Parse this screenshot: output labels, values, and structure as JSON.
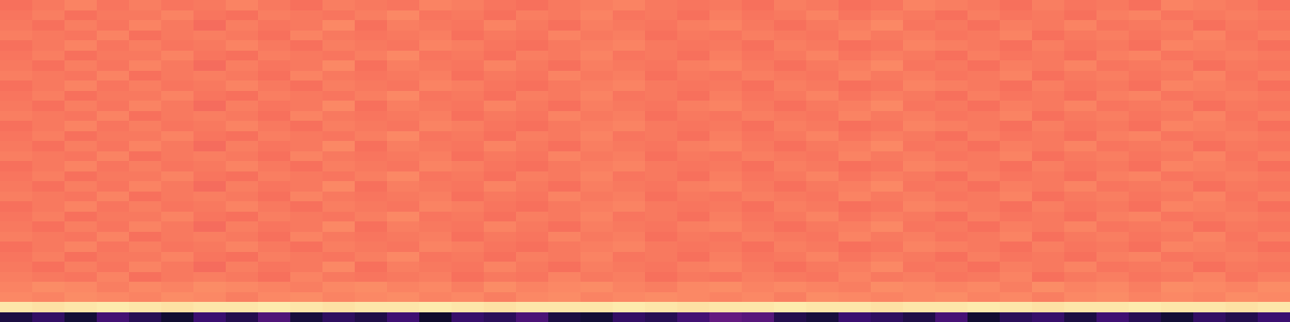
{
  "chart_data": {
    "type": "heatmap",
    "tick_labels": false,
    "zlim": [
      0,
      1
    ],
    "z": [
      [
        0.12,
        0.18,
        0.1,
        0.22,
        0.15,
        0.09,
        0.2,
        0.14,
        0.25,
        0.11,
        0.17,
        0.13,
        0.21,
        0.08,
        0.19,
        0.16,
        0.24,
        0.12,
        0.1,
        0.18,
        0.15,
        0.22,
        0.3,
        0.27,
        0.14,
        0.11,
        0.2,
        0.17,
        0.13,
        0.23,
        0.09,
        0.16,
        0.19,
        0.12,
        0.21,
        0.15,
        0.1,
        0.18,
        0.14,
        0.2
      ],
      [
        0.95,
        0.94,
        0.95,
        0.96,
        0.95,
        0.94,
        0.95,
        0.95,
        0.96,
        0.95,
        0.94,
        0.95,
        0.95,
        0.96,
        0.95,
        0.94,
        0.95,
        0.95,
        0.95,
        0.96,
        0.95,
        0.94,
        0.95,
        0.95,
        0.96,
        0.95,
        0.95,
        0.94,
        0.95,
        0.95,
        0.96,
        0.95,
        0.94,
        0.95,
        0.95,
        0.96,
        0.95,
        0.95,
        0.94,
        0.95
      ],
      [
        0.75,
        0.74,
        0.76,
        0.75,
        0.74,
        0.76,
        0.75,
        0.73,
        0.75,
        0.76,
        0.74,
        0.75,
        0.76,
        0.74,
        0.75,
        0.73,
        0.75,
        0.76,
        0.74,
        0.75,
        0.76,
        0.75,
        0.74,
        0.75,
        0.73,
        0.76,
        0.75,
        0.74,
        0.75,
        0.76,
        0.74,
        0.75,
        0.73,
        0.75,
        0.76,
        0.74,
        0.75,
        0.74,
        0.76,
        0.75
      ],
      [
        0.74,
        0.76,
        0.75,
        0.73,
        0.75,
        0.74,
        0.76,
        0.75,
        0.74,
        0.73,
        0.75,
        0.76,
        0.74,
        0.75,
        0.73,
        0.76,
        0.74,
        0.75,
        0.76,
        0.74,
        0.73,
        0.75,
        0.76,
        0.74,
        0.75,
        0.74,
        0.73,
        0.76,
        0.75,
        0.74,
        0.75,
        0.73,
        0.76,
        0.74,
        0.75,
        0.73,
        0.76,
        0.75,
        0.74,
        0.76
      ],
      [
        0.73,
        0.72,
        0.71,
        0.74,
        0.7,
        0.72,
        0.73,
        0.72,
        0.7,
        0.74,
        0.72,
        0.71,
        0.72,
        0.73,
        0.7,
        0.72,
        0.71,
        0.74,
        0.72,
        0.73,
        0.7,
        0.72,
        0.71,
        0.73,
        0.72,
        0.71,
        0.74,
        0.72,
        0.73,
        0.71,
        0.72,
        0.74,
        0.7,
        0.72,
        0.73,
        0.71,
        0.72,
        0.74,
        0.71,
        0.73
      ],
      [
        0.72,
        0.7,
        0.73,
        0.71,
        0.74,
        0.72,
        0.69,
        0.73,
        0.71,
        0.72,
        0.75,
        0.7,
        0.73,
        0.72,
        0.71,
        0.74,
        0.72,
        0.7,
        0.73,
        0.72,
        0.71,
        0.73,
        0.74,
        0.72,
        0.7,
        0.72,
        0.73,
        0.75,
        0.71,
        0.72,
        0.7,
        0.73,
        0.72,
        0.74,
        0.71,
        0.72,
        0.73,
        0.7,
        0.72,
        0.71
      ],
      [
        0.71,
        0.73,
        0.7,
        0.72,
        0.72,
        0.74,
        0.71,
        0.7,
        0.73,
        0.72,
        0.71,
        0.73,
        0.75,
        0.71,
        0.72,
        0.7,
        0.73,
        0.72,
        0.74,
        0.71,
        0.72,
        0.7,
        0.73,
        0.71,
        0.72,
        0.74,
        0.71,
        0.73,
        0.72,
        0.7,
        0.73,
        0.71,
        0.72,
        0.7,
        0.73,
        0.74,
        0.71,
        0.72,
        0.73,
        0.72
      ],
      [
        0.7,
        0.72,
        0.74,
        0.71,
        0.73,
        0.71,
        0.72,
        0.74,
        0.72,
        0.7,
        0.73,
        0.72,
        0.71,
        0.74,
        0.73,
        0.71,
        0.7,
        0.72,
        0.73,
        0.74,
        0.72,
        0.71,
        0.72,
        0.7,
        0.73,
        0.72,
        0.7,
        0.71,
        0.74,
        0.73,
        0.72,
        0.7,
        0.73,
        0.71,
        0.72,
        0.7,
        0.74,
        0.73,
        0.72,
        0.7
      ],
      [
        0.73,
        0.72,
        0.71,
        0.74,
        0.7,
        0.72,
        0.73,
        0.72,
        0.7,
        0.74,
        0.72,
        0.71,
        0.72,
        0.73,
        0.7,
        0.72,
        0.71,
        0.74,
        0.72,
        0.73,
        0.7,
        0.72,
        0.71,
        0.73,
        0.72,
        0.71,
        0.74,
        0.72,
        0.73,
        0.71,
        0.72,
        0.74,
        0.7,
        0.72,
        0.73,
        0.71,
        0.72,
        0.74,
        0.71,
        0.73
      ],
      [
        0.72,
        0.7,
        0.73,
        0.71,
        0.74,
        0.72,
        0.69,
        0.73,
        0.71,
        0.72,
        0.75,
        0.7,
        0.73,
        0.72,
        0.71,
        0.74,
        0.72,
        0.7,
        0.73,
        0.72,
        0.71,
        0.73,
        0.74,
        0.72,
        0.7,
        0.72,
        0.73,
        0.75,
        0.71,
        0.72,
        0.7,
        0.73,
        0.72,
        0.74,
        0.71,
        0.72,
        0.73,
        0.7,
        0.72,
        0.71
      ],
      [
        0.71,
        0.73,
        0.7,
        0.72,
        0.72,
        0.74,
        0.71,
        0.7,
        0.73,
        0.72,
        0.71,
        0.73,
        0.75,
        0.71,
        0.72,
        0.7,
        0.73,
        0.72,
        0.74,
        0.71,
        0.72,
        0.7,
        0.73,
        0.71,
        0.72,
        0.74,
        0.71,
        0.73,
        0.72,
        0.7,
        0.73,
        0.71,
        0.72,
        0.7,
        0.73,
        0.74,
        0.71,
        0.72,
        0.73,
        0.72
      ],
      [
        0.7,
        0.72,
        0.74,
        0.71,
        0.73,
        0.71,
        0.72,
        0.74,
        0.72,
        0.7,
        0.73,
        0.72,
        0.71,
        0.74,
        0.73,
        0.71,
        0.7,
        0.72,
        0.73,
        0.74,
        0.72,
        0.71,
        0.72,
        0.7,
        0.73,
        0.72,
        0.7,
        0.71,
        0.74,
        0.73,
        0.72,
        0.7,
        0.73,
        0.71,
        0.72,
        0.7,
        0.74,
        0.73,
        0.72,
        0.7
      ],
      [
        0.73,
        0.72,
        0.71,
        0.74,
        0.7,
        0.72,
        0.73,
        0.72,
        0.7,
        0.74,
        0.72,
        0.71,
        0.72,
        0.73,
        0.7,
        0.72,
        0.71,
        0.74,
        0.72,
        0.73,
        0.7,
        0.72,
        0.71,
        0.73,
        0.72,
        0.71,
        0.74,
        0.72,
        0.73,
        0.71,
        0.72,
        0.74,
        0.7,
        0.72,
        0.73,
        0.71,
        0.72,
        0.74,
        0.71,
        0.73
      ],
      [
        0.72,
        0.7,
        0.73,
        0.71,
        0.74,
        0.72,
        0.69,
        0.73,
        0.71,
        0.72,
        0.75,
        0.7,
        0.73,
        0.72,
        0.71,
        0.74,
        0.72,
        0.7,
        0.73,
        0.72,
        0.71,
        0.73,
        0.74,
        0.72,
        0.7,
        0.72,
        0.73,
        0.75,
        0.71,
        0.72,
        0.7,
        0.73,
        0.72,
        0.74,
        0.71,
        0.72,
        0.73,
        0.7,
        0.72,
        0.71
      ],
      [
        0.71,
        0.73,
        0.7,
        0.72,
        0.72,
        0.74,
        0.71,
        0.7,
        0.73,
        0.72,
        0.71,
        0.73,
        0.75,
        0.71,
        0.72,
        0.7,
        0.73,
        0.72,
        0.74,
        0.71,
        0.72,
        0.7,
        0.73,
        0.71,
        0.72,
        0.74,
        0.71,
        0.73,
        0.72,
        0.7,
        0.73,
        0.71,
        0.72,
        0.7,
        0.73,
        0.74,
        0.71,
        0.72,
        0.73,
        0.72
      ],
      [
        0.7,
        0.72,
        0.74,
        0.71,
        0.73,
        0.71,
        0.72,
        0.74,
        0.72,
        0.7,
        0.73,
        0.72,
        0.71,
        0.74,
        0.73,
        0.71,
        0.7,
        0.72,
        0.73,
        0.74,
        0.72,
        0.71,
        0.72,
        0.7,
        0.73,
        0.72,
        0.7,
        0.71,
        0.74,
        0.73,
        0.72,
        0.7,
        0.73,
        0.71,
        0.72,
        0.7,
        0.74,
        0.73,
        0.72,
        0.7
      ],
      [
        0.73,
        0.72,
        0.71,
        0.74,
        0.7,
        0.72,
        0.73,
        0.72,
        0.7,
        0.74,
        0.72,
        0.71,
        0.72,
        0.73,
        0.7,
        0.72,
        0.71,
        0.74,
        0.72,
        0.73,
        0.7,
        0.72,
        0.71,
        0.73,
        0.72,
        0.71,
        0.74,
        0.72,
        0.73,
        0.71,
        0.72,
        0.74,
        0.7,
        0.72,
        0.73,
        0.71,
        0.72,
        0.74,
        0.71,
        0.73
      ],
      [
        0.72,
        0.7,
        0.73,
        0.71,
        0.74,
        0.72,
        0.69,
        0.73,
        0.71,
        0.72,
        0.75,
        0.7,
        0.73,
        0.72,
        0.71,
        0.74,
        0.72,
        0.7,
        0.73,
        0.72,
        0.71,
        0.73,
        0.74,
        0.72,
        0.7,
        0.72,
        0.73,
        0.75,
        0.71,
        0.72,
        0.7,
        0.73,
        0.72,
        0.74,
        0.71,
        0.72,
        0.73,
        0.7,
        0.72,
        0.71
      ],
      [
        0.71,
        0.73,
        0.7,
        0.72,
        0.72,
        0.74,
        0.71,
        0.7,
        0.73,
        0.72,
        0.71,
        0.73,
        0.75,
        0.71,
        0.72,
        0.7,
        0.73,
        0.72,
        0.74,
        0.71,
        0.72,
        0.7,
        0.73,
        0.71,
        0.72,
        0.74,
        0.71,
        0.73,
        0.72,
        0.7,
        0.73,
        0.71,
        0.72,
        0.7,
        0.73,
        0.74,
        0.71,
        0.72,
        0.73,
        0.72
      ],
      [
        0.7,
        0.72,
        0.74,
        0.71,
        0.73,
        0.71,
        0.72,
        0.74,
        0.72,
        0.7,
        0.73,
        0.72,
        0.71,
        0.74,
        0.73,
        0.71,
        0.7,
        0.72,
        0.73,
        0.74,
        0.72,
        0.71,
        0.72,
        0.7,
        0.73,
        0.72,
        0.7,
        0.71,
        0.74,
        0.73,
        0.72,
        0.7,
        0.73,
        0.71,
        0.72,
        0.7,
        0.74,
        0.73,
        0.72,
        0.7
      ],
      [
        0.73,
        0.72,
        0.71,
        0.74,
        0.7,
        0.72,
        0.73,
        0.72,
        0.7,
        0.74,
        0.72,
        0.71,
        0.72,
        0.73,
        0.7,
        0.72,
        0.71,
        0.74,
        0.72,
        0.73,
        0.7,
        0.72,
        0.71,
        0.73,
        0.72,
        0.71,
        0.74,
        0.72,
        0.73,
        0.71,
        0.72,
        0.74,
        0.7,
        0.72,
        0.73,
        0.71,
        0.72,
        0.74,
        0.71,
        0.73
      ],
      [
        0.72,
        0.7,
        0.73,
        0.71,
        0.74,
        0.72,
        0.69,
        0.73,
        0.71,
        0.72,
        0.75,
        0.7,
        0.73,
        0.72,
        0.71,
        0.74,
        0.72,
        0.7,
        0.73,
        0.72,
        0.71,
        0.73,
        0.74,
        0.72,
        0.7,
        0.72,
        0.73,
        0.75,
        0.71,
        0.72,
        0.7,
        0.73,
        0.72,
        0.74,
        0.71,
        0.72,
        0.73,
        0.7,
        0.72,
        0.71
      ],
      [
        0.71,
        0.73,
        0.7,
        0.72,
        0.72,
        0.74,
        0.71,
        0.7,
        0.73,
        0.72,
        0.71,
        0.73,
        0.75,
        0.71,
        0.72,
        0.7,
        0.73,
        0.72,
        0.74,
        0.71,
        0.72,
        0.7,
        0.73,
        0.71,
        0.72,
        0.74,
        0.71,
        0.73,
        0.72,
        0.7,
        0.73,
        0.71,
        0.72,
        0.7,
        0.73,
        0.74,
        0.71,
        0.72,
        0.73,
        0.72
      ],
      [
        0.7,
        0.72,
        0.74,
        0.71,
        0.73,
        0.71,
        0.72,
        0.74,
        0.72,
        0.7,
        0.73,
        0.72,
        0.71,
        0.74,
        0.73,
        0.71,
        0.7,
        0.72,
        0.73,
        0.74,
        0.72,
        0.71,
        0.72,
        0.7,
        0.73,
        0.72,
        0.7,
        0.71,
        0.74,
        0.73,
        0.72,
        0.7,
        0.73,
        0.71,
        0.72,
        0.7,
        0.74,
        0.73,
        0.72,
        0.7
      ],
      [
        0.73,
        0.72,
        0.71,
        0.74,
        0.7,
        0.72,
        0.73,
        0.72,
        0.7,
        0.74,
        0.72,
        0.71,
        0.72,
        0.73,
        0.7,
        0.72,
        0.71,
        0.74,
        0.72,
        0.73,
        0.7,
        0.72,
        0.71,
        0.73,
        0.72,
        0.71,
        0.74,
        0.72,
        0.73,
        0.71,
        0.72,
        0.74,
        0.7,
        0.72,
        0.73,
        0.71,
        0.72,
        0.74,
        0.71,
        0.73
      ],
      [
        0.72,
        0.7,
        0.73,
        0.71,
        0.74,
        0.72,
        0.69,
        0.73,
        0.71,
        0.72,
        0.75,
        0.7,
        0.73,
        0.72,
        0.71,
        0.74,
        0.72,
        0.7,
        0.73,
        0.72,
        0.71,
        0.73,
        0.74,
        0.72,
        0.7,
        0.72,
        0.73,
        0.75,
        0.71,
        0.72,
        0.7,
        0.73,
        0.72,
        0.74,
        0.71,
        0.72,
        0.73,
        0.7,
        0.72,
        0.71
      ],
      [
        0.71,
        0.73,
        0.7,
        0.72,
        0.72,
        0.74,
        0.71,
        0.7,
        0.73,
        0.72,
        0.71,
        0.73,
        0.75,
        0.71,
        0.72,
        0.7,
        0.73,
        0.72,
        0.74,
        0.71,
        0.72,
        0.7,
        0.73,
        0.71,
        0.72,
        0.74,
        0.71,
        0.73,
        0.72,
        0.7,
        0.73,
        0.71,
        0.72,
        0.7,
        0.73,
        0.74,
        0.71,
        0.72,
        0.73,
        0.72
      ],
      [
        0.7,
        0.72,
        0.74,
        0.71,
        0.73,
        0.71,
        0.72,
        0.74,
        0.72,
        0.7,
        0.73,
        0.72,
        0.71,
        0.74,
        0.73,
        0.71,
        0.7,
        0.72,
        0.73,
        0.74,
        0.72,
        0.71,
        0.72,
        0.7,
        0.73,
        0.72,
        0.7,
        0.71,
        0.74,
        0.73,
        0.72,
        0.7,
        0.73,
        0.71,
        0.72,
        0.7,
        0.74,
        0.73,
        0.72,
        0.7
      ],
      [
        0.73,
        0.72,
        0.71,
        0.74,
        0.7,
        0.72,
        0.73,
        0.72,
        0.7,
        0.74,
        0.72,
        0.71,
        0.72,
        0.73,
        0.7,
        0.72,
        0.71,
        0.74,
        0.72,
        0.73,
        0.7,
        0.72,
        0.71,
        0.73,
        0.72,
        0.71,
        0.74,
        0.72,
        0.73,
        0.71,
        0.72,
        0.74,
        0.7,
        0.72,
        0.73,
        0.71,
        0.72,
        0.74,
        0.71,
        0.73
      ],
      [
        0.72,
        0.7,
        0.73,
        0.71,
        0.74,
        0.72,
        0.69,
        0.73,
        0.71,
        0.72,
        0.75,
        0.7,
        0.73,
        0.72,
        0.71,
        0.74,
        0.72,
        0.7,
        0.73,
        0.72,
        0.71,
        0.73,
        0.74,
        0.72,
        0.7,
        0.72,
        0.73,
        0.75,
        0.71,
        0.72,
        0.7,
        0.73,
        0.72,
        0.74,
        0.71,
        0.72,
        0.73,
        0.7,
        0.72,
        0.71
      ],
      [
        0.71,
        0.73,
        0.7,
        0.72,
        0.72,
        0.74,
        0.71,
        0.7,
        0.73,
        0.72,
        0.71,
        0.73,
        0.75,
        0.71,
        0.72,
        0.7,
        0.73,
        0.72,
        0.74,
        0.71,
        0.72,
        0.7,
        0.73,
        0.71,
        0.72,
        0.74,
        0.71,
        0.73,
        0.72,
        0.7,
        0.73,
        0.71,
        0.72,
        0.7,
        0.73,
        0.74,
        0.71,
        0.72,
        0.73,
        0.72
      ],
      [
        0.7,
        0.72,
        0.74,
        0.71,
        0.73,
        0.71,
        0.72,
        0.74,
        0.72,
        0.7,
        0.73,
        0.72,
        0.71,
        0.74,
        0.73,
        0.71,
        0.7,
        0.72,
        0.73,
        0.74,
        0.72,
        0.71,
        0.72,
        0.7,
        0.73,
        0.72,
        0.7,
        0.71,
        0.74,
        0.73,
        0.72,
        0.7,
        0.73,
        0.71,
        0.72,
        0.7,
        0.74,
        0.73,
        0.72,
        0.7
      ]
    ]
  }
}
